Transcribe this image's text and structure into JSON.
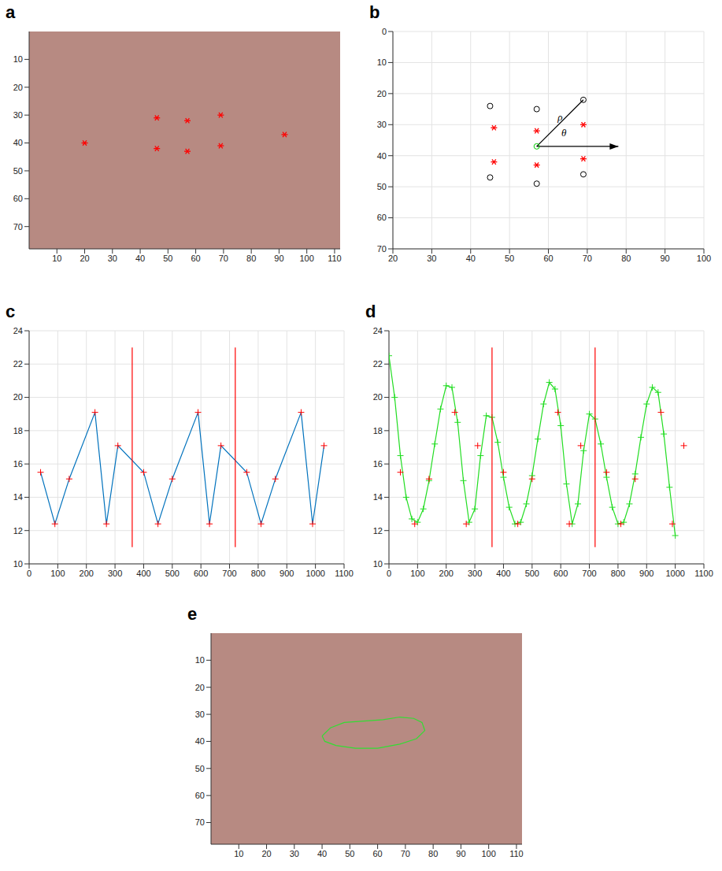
{
  "chart_data": [
    {
      "label": "a",
      "type": "image",
      "xlim": [
        0,
        112
      ],
      "xticks": [
        10,
        20,
        30,
        40,
        50,
        60,
        70,
        80,
        90,
        100,
        110
      ],
      "ylim": [
        78,
        0
      ],
      "yticks": [
        10,
        20,
        30,
        40,
        50,
        60,
        70
      ],
      "series": [
        {
          "color": "#ff0000",
          "marker": "star",
          "line_style": "none",
          "x": [
            20,
            46,
            57,
            69,
            92,
            69,
            57,
            46
          ],
          "values": [
            40,
            31,
            32,
            30,
            37,
            41,
            43,
            42
          ]
        }
      ]
    },
    {
      "label": "b",
      "type": "scatter",
      "grid": true,
      "xlim": [
        20,
        100
      ],
      "xticks": [
        20,
        30,
        40,
        50,
        60,
        70,
        80,
        90,
        100
      ],
      "ylim": [
        70,
        0
      ],
      "yticks": [
        0,
        10,
        20,
        30,
        40,
        50,
        60,
        70
      ],
      "series": [
        {
          "color": "#000000",
          "marker": "circle",
          "line_style": "none",
          "x": [
            45,
            57,
            69,
            45,
            57,
            69
          ],
          "values": [
            24,
            25,
            22,
            47,
            49,
            46
          ]
        },
        {
          "color": "#ff0000",
          "marker": "star",
          "line_style": "none",
          "x": [
            46,
            57,
            69,
            46,
            57,
            69
          ],
          "values": [
            31,
            32,
            30,
            42,
            43,
            41
          ]
        },
        {
          "color": "#000000",
          "marker": "none",
          "line_style": "solid",
          "x": [
            57,
            69
          ],
          "values": [
            37,
            22
          ]
        },
        {
          "color": "#000000",
          "marker": "arrow",
          "line_style": "solid",
          "x": [
            57,
            78
          ],
          "values": [
            37,
            37
          ]
        },
        {
          "color": "#00cc00",
          "marker": "circle",
          "line_style": "none",
          "x": [
            57
          ],
          "values": [
            37
          ]
        }
      ],
      "annotations": [
        {
          "text": "ρ",
          "x": 63,
          "y": 28
        },
        {
          "text": "θ",
          "x": 64,
          "y": 33
        }
      ]
    },
    {
      "label": "c",
      "type": "line",
      "grid": true,
      "xlim": [
        0,
        1100
      ],
      "xticks": [
        0,
        100,
        200,
        300,
        400,
        500,
        600,
        700,
        800,
        900,
        1000,
        1100
      ],
      "ylim": [
        10,
        24
      ],
      "yticks": [
        10,
        12,
        14,
        16,
        18,
        20,
        22,
        24
      ],
      "series": [
        {
          "color": "#0072bd",
          "marker": "none",
          "line_style": "solid",
          "x": [
            40,
            90,
            140,
            230,
            270,
            310,
            400,
            450,
            500,
            590,
            630,
            670,
            760,
            810,
            860,
            950,
            990,
            1030
          ],
          "values": [
            15.5,
            12.4,
            15.1,
            19.1,
            12.4,
            17.1,
            15.5,
            12.4,
            15.1,
            19.1,
            12.4,
            17.1,
            15.5,
            12.4,
            15.1,
            19.1,
            12.4,
            17.1
          ]
        },
        {
          "color": "#ff0000",
          "marker": "plus",
          "line_style": "none",
          "x": [
            40,
            90,
            140,
            230,
            270,
            310,
            400,
            450,
            500,
            590,
            630,
            670,
            760,
            810,
            860,
            950,
            990,
            1030
          ],
          "values": [
            15.5,
            12.4,
            15.1,
            19.1,
            12.4,
            17.1,
            15.5,
            12.4,
            15.1,
            19.1,
            12.4,
            17.1,
            15.5,
            12.4,
            15.1,
            19.1,
            12.4,
            17.1
          ]
        },
        {
          "color": "#ff0000",
          "marker": "none",
          "line_style": "solid",
          "x": [
            360,
            360
          ],
          "values": [
            11,
            23
          ]
        },
        {
          "color": "#ff0000",
          "marker": "none",
          "line_style": "solid",
          "x": [
            720,
            720
          ],
          "values": [
            11,
            23
          ]
        }
      ]
    },
    {
      "label": "d",
      "type": "line",
      "grid": true,
      "xlim": [
        0,
        1100
      ],
      "xticks": [
        0,
        100,
        200,
        300,
        400,
        500,
        600,
        700,
        800,
        900,
        1000,
        1100
      ],
      "ylim": [
        10,
        24
      ],
      "yticks": [
        10,
        12,
        14,
        16,
        18,
        20,
        22,
        24
      ],
      "series": [
        {
          "color": "#22dd22",
          "marker": "plus",
          "line_style": "solid",
          "x": [
            0,
            20,
            40,
            60,
            80,
            100,
            120,
            140,
            160,
            180,
            200,
            220,
            240,
            260,
            280,
            300,
            320,
            340,
            360,
            380,
            400,
            420,
            440,
            460,
            480,
            500,
            520,
            540,
            560,
            580,
            600,
            620,
            640,
            660,
            680,
            700,
            720,
            740,
            760,
            780,
            800,
            820,
            840,
            860,
            880,
            900,
            920,
            940,
            960,
            980,
            1000
          ],
          "values": [
            22.5,
            20.0,
            16.5,
            14.0,
            12.7,
            12.5,
            13.3,
            15.0,
            17.2,
            19.3,
            20.7,
            20.6,
            18.5,
            15.0,
            12.5,
            13.3,
            16.5,
            18.9,
            18.8,
            17.3,
            15.2,
            13.4,
            12.4,
            12.5,
            13.6,
            15.3,
            17.5,
            19.6,
            20.9,
            20.5,
            18.3,
            14.8,
            12.4,
            13.6,
            16.8,
            19.0,
            18.7,
            17.2,
            15.2,
            13.4,
            12.4,
            12.5,
            13.6,
            15.4,
            17.6,
            19.6,
            20.6,
            20.3,
            17.8,
            14.6,
            11.7
          ]
        },
        {
          "color": "#ff0000",
          "marker": "plus",
          "line_style": "none",
          "x": [
            40,
            90,
            140,
            230,
            270,
            310,
            400,
            450,
            500,
            590,
            630,
            670,
            760,
            810,
            860,
            950,
            990,
            1030
          ],
          "values": [
            15.5,
            12.4,
            15.1,
            19.1,
            12.4,
            17.1,
            15.5,
            12.4,
            15.1,
            19.1,
            12.4,
            17.1,
            15.5,
            12.4,
            15.1,
            19.1,
            12.4,
            17.1
          ]
        },
        {
          "color": "#ff0000",
          "marker": "none",
          "line_style": "solid",
          "x": [
            360,
            360
          ],
          "values": [
            11,
            23
          ]
        },
        {
          "color": "#ff0000",
          "marker": "none",
          "line_style": "solid",
          "x": [
            720,
            720
          ],
          "values": [
            11,
            23
          ]
        }
      ]
    },
    {
      "label": "e",
      "type": "image",
      "xlim": [
        0,
        112
      ],
      "xticks": [
        10,
        20,
        30,
        40,
        50,
        60,
        70,
        80,
        90,
        100,
        110
      ],
      "ylim": [
        78,
        0
      ],
      "yticks": [
        10,
        20,
        30,
        40,
        50,
        60,
        70
      ],
      "series": [
        {
          "color": "#33dd33",
          "marker": "none",
          "line_style": "solid",
          "x": [
            40,
            43,
            48,
            55,
            62,
            68,
            73,
            76,
            77,
            74,
            68,
            60,
            52,
            45,
            41,
            40
          ],
          "values": [
            38,
            35,
            33,
            32.5,
            32,
            31,
            31.5,
            33,
            36,
            39,
            41,
            42.5,
            42.5,
            41.5,
            40,
            38
          ]
        }
      ]
    }
  ]
}
